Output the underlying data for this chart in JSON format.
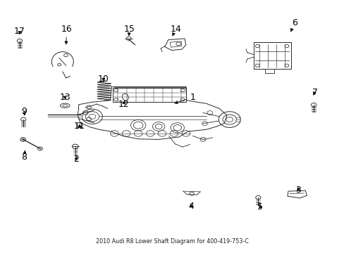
{
  "title": "2010 Audi R8 Lower Shaft Diagram for 400-419-753-C",
  "bg_color": "#ffffff",
  "line_color": "#2a2a2a",
  "figsize": [
    4.89,
    3.6
  ],
  "dpi": 100,
  "label_positions": {
    "1": [
      0.56,
      0.618,
      0.5,
      0.59
    ],
    "2": [
      0.218,
      0.368,
      0.218,
      0.39
    ],
    "3": [
      0.87,
      0.245,
      0.868,
      0.258
    ],
    "4": [
      0.555,
      0.18,
      0.553,
      0.198
    ],
    "5": [
      0.758,
      0.178,
      0.756,
      0.195
    ],
    "6": [
      0.858,
      0.915,
      0.845,
      0.872
    ],
    "7": [
      0.918,
      0.638,
      0.91,
      0.618
    ],
    "8": [
      0.065,
      0.378,
      0.068,
      0.405
    ],
    "9": [
      0.065,
      0.56,
      0.068,
      0.535
    ],
    "10": [
      0.298,
      0.69,
      0.298,
      0.672
    ],
    "11": [
      0.228,
      0.502,
      0.228,
      0.518
    ],
    "12": [
      0.358,
      0.59,
      0.36,
      0.605
    ],
    "13": [
      0.185,
      0.618,
      0.188,
      0.6
    ],
    "14": [
      0.51,
      0.892,
      0.5,
      0.862
    ],
    "15": [
      0.375,
      0.892,
      0.372,
      0.862
    ],
    "16": [
      0.19,
      0.892,
      0.188,
      0.82
    ],
    "17": [
      0.052,
      0.882,
      0.052,
      0.86
    ]
  }
}
